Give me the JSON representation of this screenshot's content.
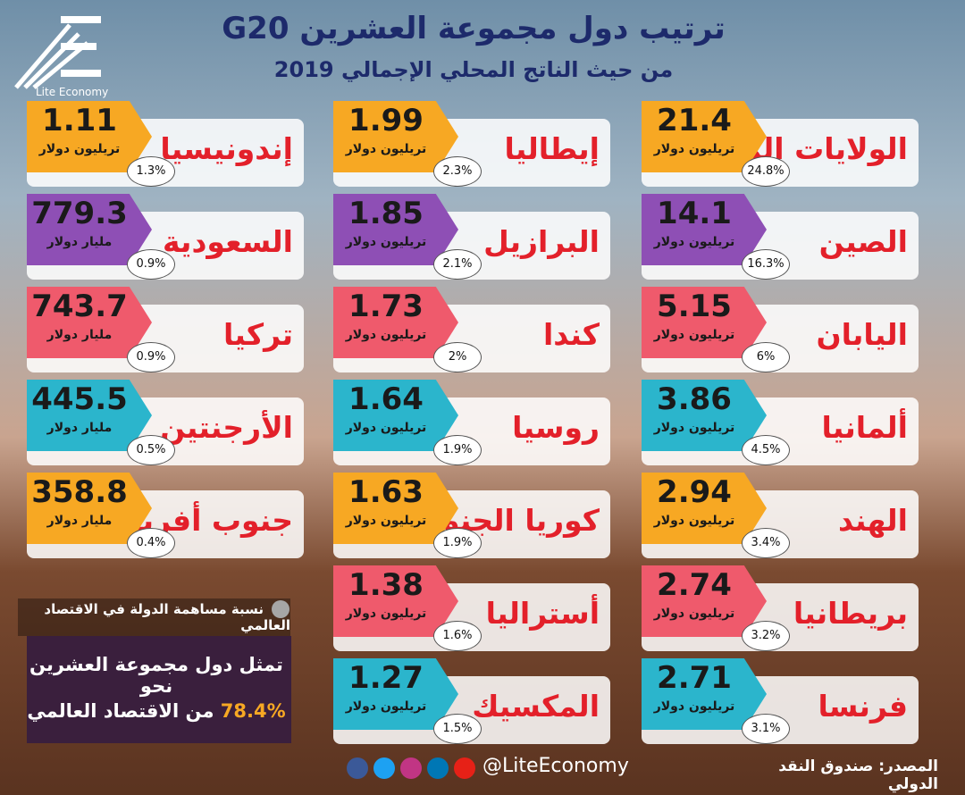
{
  "header": {
    "logo": "Lite Economy",
    "title": "ترتيب دول مجموعة العشرين G20",
    "subtitle": "من حيث الناتج المحلي الإجمالي 2019"
  },
  "columns": [
    [
      {
        "country": "الولايات المتحدة",
        "value": "21.4",
        "unit": "تريليون دولار",
        "share": "24.8%",
        "color": "#f7a823"
      },
      {
        "country": "الصين",
        "value": "14.1",
        "unit": "تريليون دولار",
        "share": "16.3%",
        "color": "#8e4fb5"
      },
      {
        "country": "اليابان",
        "value": "5.15",
        "unit": "تريليون دولار",
        "share": "6%",
        "color": "#ef5a6c"
      },
      {
        "country": "ألمانيا",
        "value": "3.86",
        "unit": "تريليون دولار",
        "share": "4.5%",
        "color": "#2bb5cc"
      },
      {
        "country": "الهند",
        "value": "2.94",
        "unit": "تريليون دولار",
        "share": "3.4%",
        "color": "#f7a823"
      },
      {
        "country": "بريطانيا",
        "value": "2.74",
        "unit": "تريليون دولار",
        "share": "3.2%",
        "color": "#ef5a6c"
      },
      {
        "country": "فرنسا",
        "value": "2.71",
        "unit": "تريليون دولار",
        "share": "3.1%",
        "color": "#2bb5cc"
      }
    ],
    [
      {
        "country": "إيطاليا",
        "value": "1.99",
        "unit": "تريليون دولار",
        "share": "2.3%",
        "color": "#f7a823"
      },
      {
        "country": "البرازيل",
        "value": "1.85",
        "unit": "تريليون دولار",
        "share": "2.1%",
        "color": "#8e4fb5"
      },
      {
        "country": "كندا",
        "value": "1.73",
        "unit": "تريليون دولار",
        "share": "2%",
        "color": "#ef5a6c"
      },
      {
        "country": "روسيا",
        "value": "1.64",
        "unit": "تريليون دولار",
        "share": "1.9%",
        "color": "#2bb5cc"
      },
      {
        "country": "كوريا الجنوبية",
        "value": "1.63",
        "unit": "تريليون دولار",
        "share": "1.9%",
        "color": "#f7a823"
      },
      {
        "country": "أستراليا",
        "value": "1.38",
        "unit": "تريليون دولار",
        "share": "1.6%",
        "color": "#ef5a6c"
      },
      {
        "country": "المكسيك",
        "value": "1.27",
        "unit": "تريليون دولار",
        "share": "1.5%",
        "color": "#2bb5cc"
      }
    ],
    [
      {
        "country": "إندونيسيا",
        "value": "1.11",
        "unit": "تريليون دولار",
        "share": "1.3%",
        "color": "#f7a823"
      },
      {
        "country": "السعودية",
        "value": "779.3",
        "unit": "مليار دولار",
        "share": "0.9%",
        "color": "#8e4fb5"
      },
      {
        "country": "تركيا",
        "value": "743.7",
        "unit": "مليار دولار",
        "share": "0.9%",
        "color": "#ef5a6c"
      },
      {
        "country": "الأرجنتين",
        "value": "445.5",
        "unit": "مليار دولار",
        "share": "0.5%",
        "color": "#2bb5cc"
      },
      {
        "country": "جنوب أفريقيا",
        "value": "358.8",
        "unit": "مليار دولار",
        "share": "0.4%",
        "color": "#f7a823"
      }
    ]
  ],
  "legend": "نسبة مساهمة الدولة في الاقتصاد العالمي",
  "summary": {
    "line1": "تمثل دول مجموعة العشرين نحو",
    "share": "78.4%",
    "line2": "من الاقتصاد العالمي"
  },
  "footer": {
    "handle": "@LiteEconomy",
    "source": "المصدر: صندوق النقد الدولي"
  }
}
